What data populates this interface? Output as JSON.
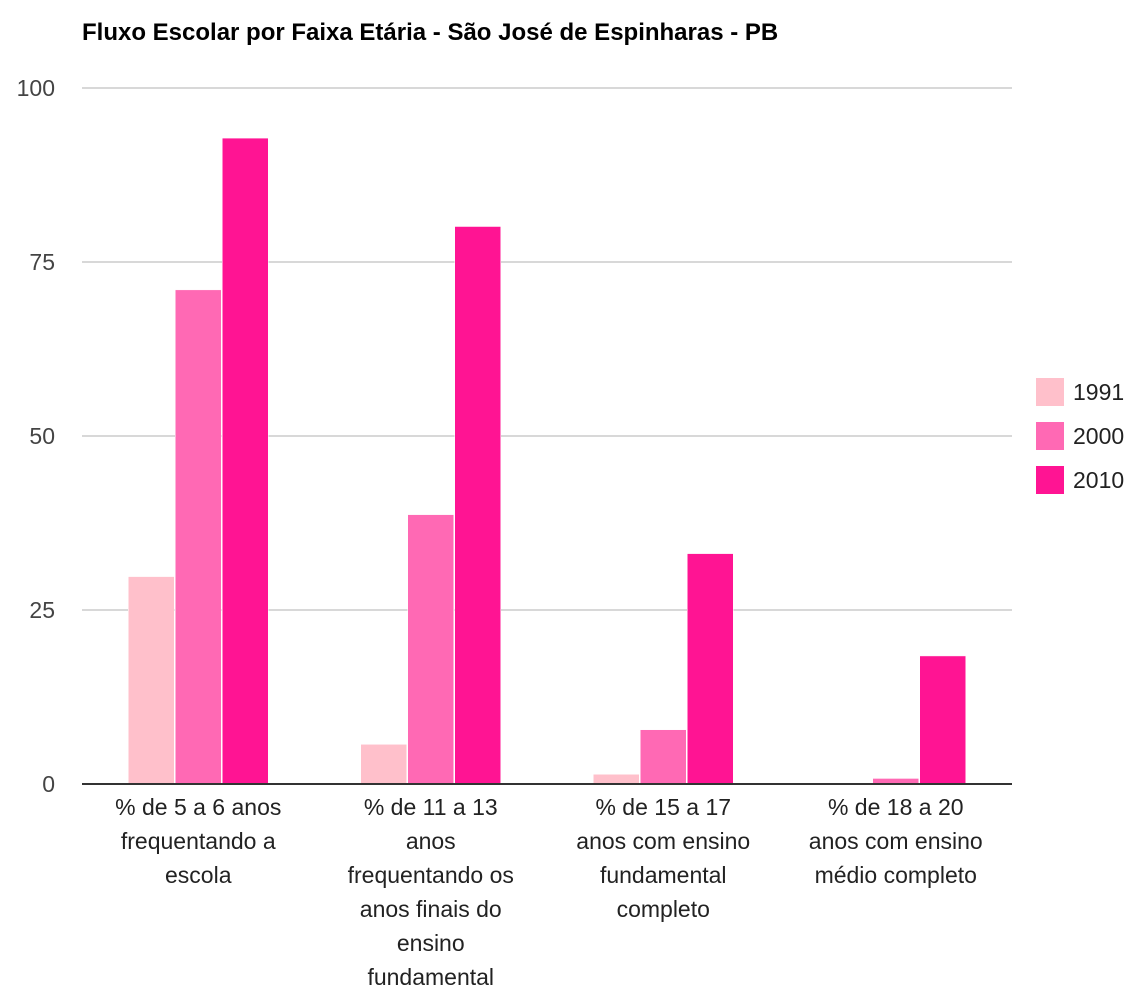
{
  "chart_data": {
    "type": "bar",
    "title": "Fluxo Escolar por Faixa Etária - São José de Espinharas - PB",
    "xlabel": "",
    "ylabel": "",
    "ylim": [
      0,
      100
    ],
    "yticks": [
      0,
      25,
      50,
      75,
      100
    ],
    "grid": true,
    "legend_position": "right",
    "categories": [
      [
        "% de 5 a 6 anos",
        "frequentando a",
        "escola"
      ],
      [
        "% de 11 a 13",
        "anos",
        "frequentando os",
        "anos finais do",
        "ensino",
        "fundamental"
      ],
      [
        "% de 15 a 17",
        "anos com ensino",
        "fundamental",
        "completo"
      ],
      [
        "% de 18 a 20",
        "anos com ensino",
        "médio completo"
      ]
    ],
    "series": [
      {
        "name": "1991",
        "color": "#ffc0cb",
        "values": [
          29.8,
          5.7,
          1.4,
          0.0
        ]
      },
      {
        "name": "2000",
        "color": "#ff69b4",
        "values": [
          71.0,
          38.7,
          7.8,
          0.8
        ]
      },
      {
        "name": "2010",
        "color": "#ff1493",
        "values": [
          92.8,
          80.1,
          33.1,
          18.4
        ]
      }
    ]
  }
}
